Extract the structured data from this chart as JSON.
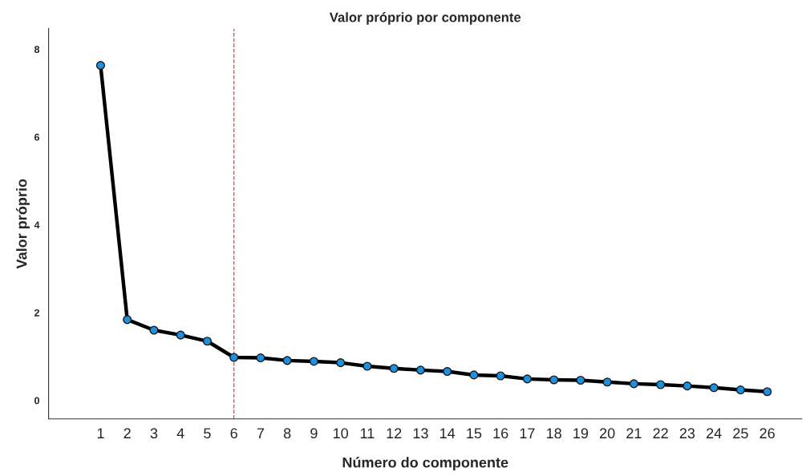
{
  "chart_data": {
    "type": "line",
    "title": "Valor próprio por componente",
    "xlabel": "Número do componente",
    "ylabel": "Valor próprio",
    "x": [
      1,
      2,
      3,
      4,
      5,
      6,
      7,
      8,
      9,
      10,
      11,
      12,
      13,
      14,
      15,
      16,
      17,
      18,
      19,
      20,
      21,
      22,
      23,
      24,
      25,
      26
    ],
    "series": [
      {
        "color": "#000000",
        "values": [
          7.63,
          1.84,
          1.6,
          1.49,
          1.35,
          0.98,
          0.97,
          0.91,
          0.89,
          0.86,
          0.78,
          0.73,
          0.69,
          0.66,
          0.58,
          0.56,
          0.49,
          0.47,
          0.46,
          0.42,
          0.38,
          0.36,
          0.33,
          0.29,
          0.24,
          0.2
        ]
      }
    ],
    "xlim": [
      -0.95,
      27.3
    ],
    "xticks": [
      1,
      2,
      3,
      4,
      5,
      6,
      7,
      8,
      9,
      10,
      11,
      12,
      13,
      14,
      15,
      16,
      17,
      18,
      19,
      20,
      21,
      22,
      23,
      24,
      25,
      26
    ],
    "ylim": [
      -0.42,
      8.47
    ],
    "yticks": [
      0,
      2,
      4,
      6,
      8
    ],
    "ref_lines": [
      {
        "axis": "x",
        "value": 6,
        "color": "#e8413c",
        "line_style": "dashed"
      }
    ],
    "marker": "circle",
    "line_style": "solid",
    "grid": false,
    "legend": false
  }
}
